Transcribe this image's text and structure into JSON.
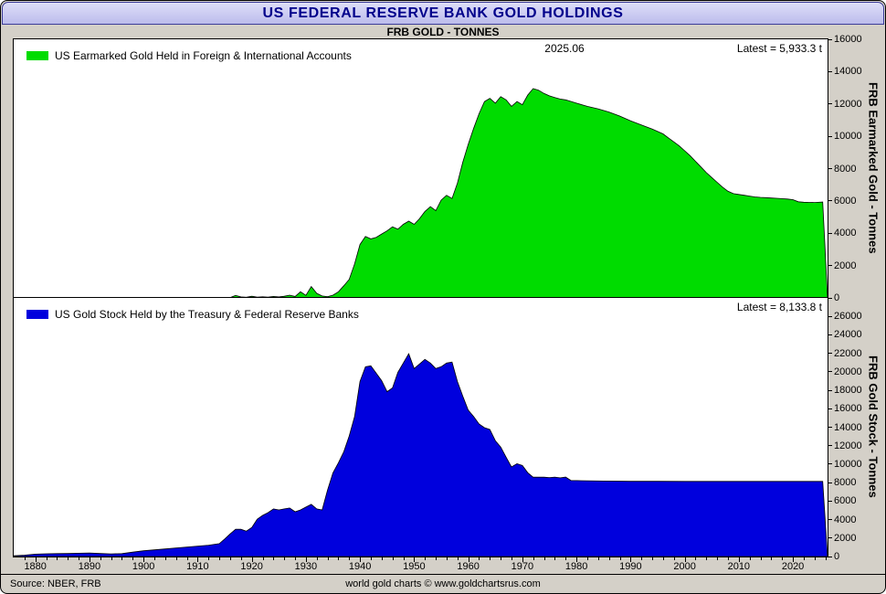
{
  "window": {
    "title": "US FEDERAL RESERVE BANK GOLD HOLDINGS"
  },
  "subtitle": "FRB GOLD - TONNES",
  "footer": {
    "source": "Source: NBER, FRB",
    "credit": "world gold charts © www.goldchartsrus.com"
  },
  "xaxis": {
    "range": [
      1876,
      2026.4
    ],
    "tick_start": 1880,
    "tick_end": 2020,
    "tick_step": 10,
    "minor_step": 2
  },
  "chart_data": [
    {
      "type": "area",
      "id": "earmarked",
      "legend": "US Earmarked Gold Held in Foreign & International Accounts",
      "fill_color": "#00dc00",
      "annotation": "2025.06",
      "latest": "Latest = 5,933.3 t",
      "ylabel": "FRB Earmarked Gold - Tonnes",
      "ymax_plot": 16000,
      "yticks_max": 16000,
      "ytick_step": 2000,
      "points": [
        [
          1876,
          0
        ],
        [
          1900,
          0
        ],
        [
          1910,
          0
        ],
        [
          1915,
          0
        ],
        [
          1916,
          20
        ],
        [
          1917,
          150
        ],
        [
          1918,
          60
        ],
        [
          1919,
          40
        ],
        [
          1920,
          100
        ],
        [
          1921,
          50
        ],
        [
          1922,
          70
        ],
        [
          1923,
          50
        ],
        [
          1924,
          90
        ],
        [
          1925,
          60
        ],
        [
          1926,
          100
        ],
        [
          1927,
          170
        ],
        [
          1928,
          90
        ],
        [
          1929,
          380
        ],
        [
          1930,
          160
        ],
        [
          1931,
          700
        ],
        [
          1932,
          280
        ],
        [
          1933,
          120
        ],
        [
          1934,
          80
        ],
        [
          1935,
          170
        ],
        [
          1936,
          380
        ],
        [
          1937,
          750
        ],
        [
          1938,
          1150
        ],
        [
          1939,
          2100
        ],
        [
          1940,
          3300
        ],
        [
          1941,
          3800
        ],
        [
          1942,
          3650
        ],
        [
          1943,
          3750
        ],
        [
          1944,
          3950
        ],
        [
          1945,
          4150
        ],
        [
          1946,
          4400
        ],
        [
          1947,
          4250
        ],
        [
          1948,
          4550
        ],
        [
          1949,
          4750
        ],
        [
          1950,
          4550
        ],
        [
          1951,
          4900
        ],
        [
          1952,
          5350
        ],
        [
          1953,
          5650
        ],
        [
          1954,
          5400
        ],
        [
          1955,
          6050
        ],
        [
          1956,
          6350
        ],
        [
          1957,
          6150
        ],
        [
          1958,
          7100
        ],
        [
          1959,
          8400
        ],
        [
          1960,
          9500
        ],
        [
          1961,
          10500
        ],
        [
          1962,
          11400
        ],
        [
          1963,
          12150
        ],
        [
          1964,
          12350
        ],
        [
          1965,
          12050
        ],
        [
          1966,
          12450
        ],
        [
          1967,
          12250
        ],
        [
          1968,
          11850
        ],
        [
          1969,
          12150
        ],
        [
          1970,
          11950
        ],
        [
          1971,
          12550
        ],
        [
          1972,
          12950
        ],
        [
          1973,
          12850
        ],
        [
          1974,
          12650
        ],
        [
          1975,
          12500
        ],
        [
          1976,
          12400
        ],
        [
          1977,
          12300
        ],
        [
          1978,
          12250
        ],
        [
          1980,
          12050
        ],
        [
          1982,
          11850
        ],
        [
          1984,
          11700
        ],
        [
          1986,
          11500
        ],
        [
          1988,
          11250
        ],
        [
          1990,
          10950
        ],
        [
          1992,
          10700
        ],
        [
          1994,
          10450
        ],
        [
          1996,
          10150
        ],
        [
          1997,
          9900
        ],
        [
          1998,
          9650
        ],
        [
          1999,
          9400
        ],
        [
          2000,
          9100
        ],
        [
          2001,
          8800
        ],
        [
          2002,
          8450
        ],
        [
          2003,
          8100
        ],
        [
          2004,
          7750
        ],
        [
          2005,
          7450
        ],
        [
          2006,
          7150
        ],
        [
          2007,
          6850
        ],
        [
          2008,
          6600
        ],
        [
          2009,
          6450
        ],
        [
          2010,
          6400
        ],
        [
          2011,
          6350
        ],
        [
          2012,
          6300
        ],
        [
          2013,
          6250
        ],
        [
          2014,
          6220
        ],
        [
          2015,
          6200
        ],
        [
          2016,
          6180
        ],
        [
          2017,
          6160
        ],
        [
          2018,
          6140
        ],
        [
          2019,
          6120
        ],
        [
          2020,
          6080
        ],
        [
          2021,
          5950
        ],
        [
          2022,
          5920
        ],
        [
          2023,
          5910
        ],
        [
          2024,
          5900
        ],
        [
          2025.5,
          5933
        ]
      ]
    },
    {
      "type": "area",
      "id": "goldstock",
      "legend": "US Gold Stock Held by the Treasury & Federal Reserve Banks",
      "fill_color": "#0000dd",
      "annotation": "",
      "latest": "Latest = 8,133.8 t",
      "ylabel": "FRB Gold Stock - Tonnes",
      "ymax_plot": 28000,
      "yticks_max": 26000,
      "ytick_step": 2000,
      "points": [
        [
          1876,
          80
        ],
        [
          1878,
          150
        ],
        [
          1880,
          260
        ],
        [
          1882,
          300
        ],
        [
          1884,
          320
        ],
        [
          1886,
          330
        ],
        [
          1888,
          360
        ],
        [
          1890,
          390
        ],
        [
          1892,
          330
        ],
        [
          1894,
          290
        ],
        [
          1896,
          320
        ],
        [
          1898,
          470
        ],
        [
          1900,
          620
        ],
        [
          1902,
          720
        ],
        [
          1904,
          820
        ],
        [
          1906,
          930
        ],
        [
          1908,
          1030
        ],
        [
          1910,
          1130
        ],
        [
          1912,
          1230
        ],
        [
          1914,
          1400
        ],
        [
          1915,
          1900
        ],
        [
          1916,
          2450
        ],
        [
          1917,
          2950
        ],
        [
          1918,
          2950
        ],
        [
          1919,
          2750
        ],
        [
          1920,
          3150
        ],
        [
          1921,
          4050
        ],
        [
          1922,
          4450
        ],
        [
          1923,
          4750
        ],
        [
          1924,
          5150
        ],
        [
          1925,
          5050
        ],
        [
          1926,
          5150
        ],
        [
          1927,
          5250
        ],
        [
          1928,
          4850
        ],
        [
          1929,
          5050
        ],
        [
          1930,
          5350
        ],
        [
          1931,
          5650
        ],
        [
          1932,
          5150
        ],
        [
          1933,
          5050
        ],
        [
          1934,
          7200
        ],
        [
          1935,
          9050
        ],
        [
          1936,
          10150
        ],
        [
          1937,
          11350
        ],
        [
          1938,
          13050
        ],
        [
          1939,
          15150
        ],
        [
          1940,
          18950
        ],
        [
          1941,
          20550
        ],
        [
          1942,
          20650
        ],
        [
          1943,
          19850
        ],
        [
          1944,
          19050
        ],
        [
          1945,
          17850
        ],
        [
          1946,
          18250
        ],
        [
          1947,
          19950
        ],
        [
          1948,
          20950
        ],
        [
          1949,
          21950
        ],
        [
          1950,
          20350
        ],
        [
          1951,
          20850
        ],
        [
          1952,
          21350
        ],
        [
          1953,
          20950
        ],
        [
          1954,
          20350
        ],
        [
          1955,
          20550
        ],
        [
          1956,
          20950
        ],
        [
          1957,
          21050
        ],
        [
          1958,
          18950
        ],
        [
          1959,
          17350
        ],
        [
          1960,
          15850
        ],
        [
          1961,
          15150
        ],
        [
          1962,
          14350
        ],
        [
          1963,
          13950
        ],
        [
          1964,
          13750
        ],
        [
          1965,
          12550
        ],
        [
          1966,
          11850
        ],
        [
          1967,
          10750
        ],
        [
          1968,
          9700
        ],
        [
          1969,
          10050
        ],
        [
          1970,
          9850
        ],
        [
          1971,
          9070
        ],
        [
          1972,
          8584
        ],
        [
          1974,
          8584
        ],
        [
          1975,
          8544
        ],
        [
          1976,
          8600
        ],
        [
          1977,
          8516
        ],
        [
          1978,
          8597
        ],
        [
          1979,
          8230
        ],
        [
          1980,
          8221
        ],
        [
          1982,
          8200
        ],
        [
          1985,
          8170
        ],
        [
          1990,
          8146
        ],
        [
          1995,
          8140
        ],
        [
          2000,
          8137
        ],
        [
          2005,
          8134
        ],
        [
          2010,
          8133.5
        ],
        [
          2015,
          8133.5
        ],
        [
          2020,
          8133.5
        ],
        [
          2025.5,
          8133.8
        ]
      ]
    }
  ]
}
